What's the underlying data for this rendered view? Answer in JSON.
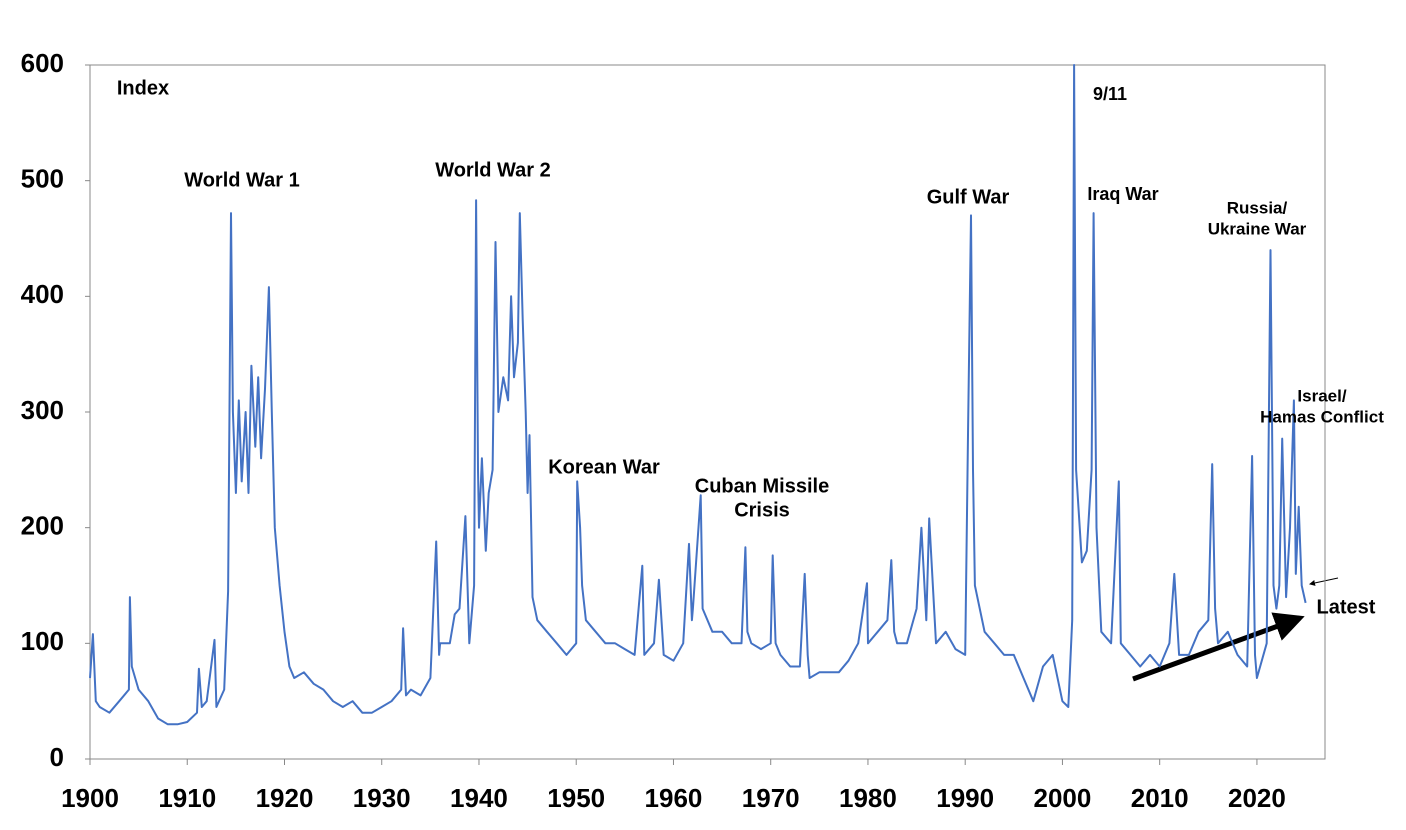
{
  "chart_data": {
    "type": "line",
    "y_label": "Index",
    "annotations": [
      [
        "World War 1"
      ],
      [
        "World War 2"
      ],
      [
        "Korean War"
      ],
      [
        "Cuban Missile",
        "Crisis"
      ],
      [
        "Gulf War"
      ],
      [
        "9/11"
      ],
      [
        "Iraq War"
      ],
      [
        "Russia/",
        "Ukraine War"
      ],
      [
        "Israel/",
        "Hamas Conflict"
      ],
      [
        "Latest"
      ]
    ],
    "xlim": [
      1900,
      2027
    ],
    "ylim": [
      0,
      600
    ],
    "xticks": [
      1900,
      1910,
      1920,
      1930,
      1940,
      1950,
      1960,
      1970,
      1980,
      1990,
      2000,
      2010,
      2020
    ],
    "yticks": [
      0,
      100,
      200,
      300,
      400,
      500,
      600
    ],
    "grid": false,
    "x": [
      1900,
      1900.3,
      1900.6,
      1901,
      1902,
      1903,
      1904,
      1904.1,
      1904.3,
      1905,
      1906,
      1907,
      1908,
      1909,
      1910,
      1911,
      1911.2,
      1911.5,
      1912,
      1912.8,
      1913,
      1913.8,
      1914.2,
      1914.5,
      1914.7,
      1915,
      1915.3,
      1915.6,
      1916,
      1916.3,
      1916.6,
      1917,
      1917.3,
      1917.6,
      1918,
      1918.4,
      1918.7,
      1919,
      1919.5,
      1920,
      1920.5,
      1921,
      1922,
      1923,
      1924,
      1925,
      1926,
      1927,
      1928,
      1929,
      1930,
      1931,
      1932,
      1932.2,
      1932.5,
      1933,
      1934,
      1935,
      1935.6,
      1935.9,
      1936,
      1937,
      1937.5,
      1938,
      1938.6,
      1939,
      1939.5,
      1939.7,
      1939.9,
      1940,
      1940.3,
      1940.7,
      1941,
      1941.4,
      1941.7,
      1942,
      1942.5,
      1943,
      1943.3,
      1943.6,
      1944,
      1944.2,
      1944.5,
      1944.8,
      1945,
      1945.2,
      1945.5,
      1946,
      1947,
      1948,
      1949,
      1950,
      1950.1,
      1950.4,
      1950.6,
      1951,
      1952,
      1953,
      1954,
      1955,
      1956,
      1956.8,
      1957,
      1958,
      1958.5,
      1959,
      1960,
      1961,
      1961.6,
      1961.9,
      1962,
      1962.8,
      1963,
      1964,
      1965,
      1966,
      1967,
      1967.4,
      1967.6,
      1968,
      1969,
      1970,
      1970.2,
      1970.5,
      1971,
      1972,
      1973,
      1973.5,
      1973.8,
      1974,
      1975,
      1976,
      1977,
      1978,
      1979,
      1979.9,
      1980,
      1981,
      1982,
      1982.4,
      1982.7,
      1983,
      1984,
      1985,
      1985.5,
      1986,
      1986.3,
      1987,
      1988,
      1989,
      1990,
      1990.3,
      1990.6,
      1990.8,
      1991,
      1992,
      1993,
      1994,
      1995,
      1996,
      1997,
      1998,
      1999,
      2000,
      2000.6,
      2001,
      2001.2,
      2001.4,
      2002,
      2002.5,
      2003,
      2003.2,
      2003.5,
      2004,
      2005,
      2005.8,
      2006,
      2007,
      2008,
      2009,
      2010,
      2011,
      2011.5,
      2012,
      2013,
      2014,
      2015,
      2015.4,
      2015.7,
      2016,
      2017,
      2018,
      2019,
      2019.5,
      2019.8,
      2020,
      2021,
      2021.4,
      2021.7,
      2022,
      2022.3,
      2022.6,
      2023,
      2023.4,
      2023.8,
      2024,
      2024.3,
      2024.6,
      2025
    ],
    "series": [
      {
        "color": "#4472c4",
        "values": [
          70,
          108,
          50,
          45,
          40,
          50,
          60,
          140,
          80,
          60,
          50,
          35,
          30,
          30,
          32,
          40,
          78,
          45,
          50,
          103,
          45,
          60,
          145,
          472,
          300,
          230,
          310,
          240,
          300,
          230,
          340,
          270,
          330,
          260,
          320,
          408,
          300,
          200,
          150,
          110,
          80,
          70,
          75,
          65,
          60,
          50,
          45,
          50,
          40,
          40,
          45,
          50,
          60,
          113,
          55,
          60,
          55,
          70,
          188,
          90,
          100,
          100,
          125,
          130,
          210,
          100,
          150,
          483,
          250,
          200,
          260,
          180,
          230,
          250,
          447,
          300,
          330,
          310,
          400,
          330,
          360,
          472,
          380,
          300,
          230,
          280,
          140,
          120,
          110,
          100,
          90,
          100,
          240,
          200,
          150,
          120,
          110,
          100,
          100,
          95,
          90,
          167,
          90,
          100,
          155,
          90,
          85,
          100,
          186,
          120,
          130,
          228,
          130,
          110,
          110,
          100,
          100,
          183,
          110,
          100,
          95,
          100,
          176,
          100,
          90,
          80,
          80,
          160,
          90,
          70,
          75,
          75,
          75,
          85,
          100,
          152,
          100,
          110,
          120,
          172,
          110,
          100,
          100,
          130,
          200,
          120,
          208,
          100,
          110,
          95,
          90,
          287,
          470,
          250,
          150,
          110,
          100,
          90,
          90,
          70,
          50,
          80,
          90,
          50,
          45,
          120,
          600,
          250,
          170,
          180,
          250,
          472,
          200,
          110,
          100,
          240,
          100,
          90,
          80,
          90,
          80,
          100,
          160,
          90,
          90,
          110,
          120,
          255,
          130,
          100,
          110,
          90,
          80,
          262,
          90,
          70,
          100,
          440,
          150,
          130,
          150,
          277,
          140,
          200,
          310,
          160,
          218,
          150,
          135
        ]
      }
    ]
  }
}
